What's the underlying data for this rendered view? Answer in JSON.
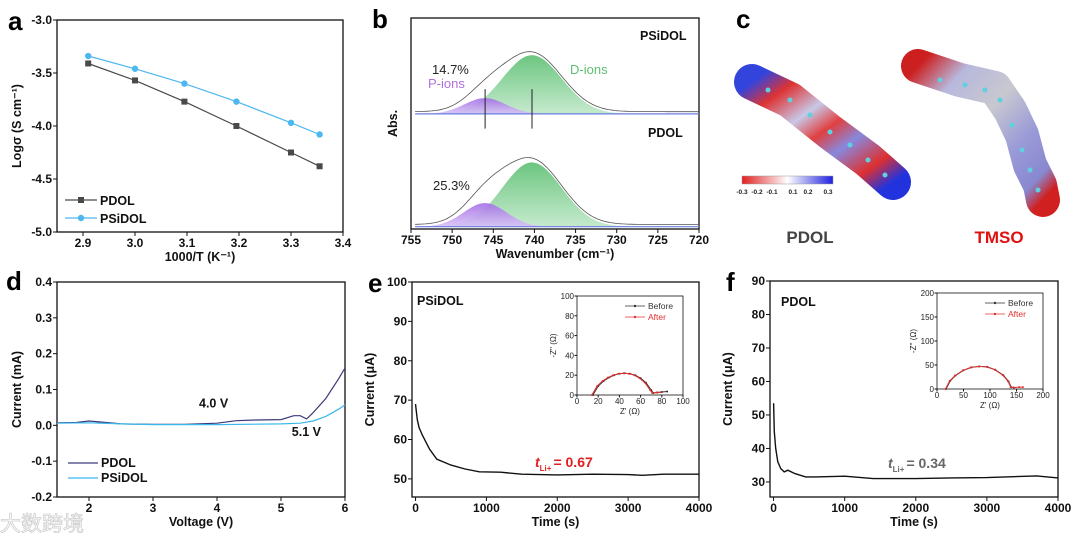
{
  "watermark": "大数跨境",
  "chart_data": [
    {
      "panel": "a",
      "type": "line",
      "xlabel": "1000/T (K⁻¹)",
      "ylabel": "Logσ (S cm⁻¹)",
      "xlim": [
        2.85,
        3.4
      ],
      "ylim": [
        -5.0,
        -3.0
      ],
      "xticks": [
        "2.9",
        "3.0",
        "3.1",
        "3.2",
        "3.3",
        "3.4"
      ],
      "yticks": [
        "-5.0",
        "-4.5",
        "-4.0",
        "-3.5",
        "-3.0"
      ],
      "legend_position": "bottom-left",
      "series": [
        {
          "name": "PDOL",
          "color": "#4a4a4a",
          "marker": "square",
          "points": [
            [
              2.91,
              -3.41
            ],
            [
              3.0,
              -3.57
            ],
            [
              3.095,
              -3.77
            ],
            [
              3.195,
              -4.0
            ],
            [
              3.3,
              -4.25
            ],
            [
              3.355,
              -4.38
            ]
          ]
        },
        {
          "name": "PSiDOL",
          "color": "#4db8f0",
          "marker": "circle",
          "points": [
            [
              2.91,
              -3.34
            ],
            [
              3.0,
              -3.46
            ],
            [
              3.095,
              -3.6
            ],
            [
              3.195,
              -3.77
            ],
            [
              3.3,
              -3.97
            ],
            [
              3.355,
              -4.08
            ]
          ]
        }
      ]
    },
    {
      "panel": "b",
      "type": "area",
      "xlabel": "Wavenumber (cm⁻¹)",
      "ylabel": "Abs.",
      "xlim": [
        755,
        720
      ],
      "xticks": [
        "755",
        "750",
        "745",
        "740",
        "735",
        "730",
        "725",
        "720"
      ],
      "series": [
        {
          "name": "PSiDOL",
          "color": "#8878e8",
          "offset": 1.0,
          "components": [
            {
              "name": "P-ions",
              "center": 746,
              "sigma": 2.5,
              "amplitude": 0.14,
              "color": "#b07ee8"
            },
            {
              "name": "D-ions",
              "center": 740.3,
              "sigma": 3.6,
              "amplitude": 0.52,
              "color": "#66c47a"
            }
          ],
          "p_ion_fraction": "14.7%"
        },
        {
          "name": "PDOL",
          "color": "#333333",
          "offset": 0.0,
          "components": [
            {
              "name": "P-ions",
              "center": 746,
              "sigma": 2.6,
              "amplitude": 0.21,
              "color": "#b07ee8"
            },
            {
              "name": "D-ions",
              "center": 740.3,
              "sigma": 3.6,
              "amplitude": 0.57,
              "color": "#66c47a"
            }
          ],
          "p_ion_fraction": "25.3%"
        }
      ],
      "annotations": {
        "p_ions": "P-ions",
        "d_ions": "D-ions"
      },
      "marker_lines": [
        746,
        740.3
      ]
    },
    {
      "panel": "c",
      "type": "other",
      "molecules": [
        {
          "name": "PDOL",
          "color": "#444444"
        },
        {
          "name": "TMSO",
          "color": "#e01010"
        }
      ],
      "colorbar_ticks": [
        "-0.3",
        "-0.2",
        "-0.1",
        "0.1",
        "0.2",
        "0.3"
      ],
      "colorbar_colors": [
        "#e02020",
        "#ffffff",
        "#2020e0"
      ]
    },
    {
      "panel": "d",
      "type": "line",
      "xlabel": "Voltage (V)",
      "ylabel": "Current (mA)",
      "xlim": [
        1.5,
        6
      ],
      "ylim": [
        -0.2,
        0.4
      ],
      "xticks": [
        "2",
        "3",
        "4",
        "5",
        "6"
      ],
      "yticks": [
        "-0.2",
        "-0.1",
        "0.0",
        "0.1",
        "0.2",
        "0.3",
        "0.4"
      ],
      "legend_position": "bottom-left",
      "series": [
        {
          "name": "PDOL",
          "color": "#3a3a7a",
          "points": [
            [
              1.5,
              0.007
            ],
            [
              1.8,
              0.008
            ],
            [
              2.0,
              0.012
            ],
            [
              2.2,
              0.009
            ],
            [
              2.5,
              0.004
            ],
            [
              3,
              0.003
            ],
            [
              3.5,
              0.003
            ],
            [
              4,
              0.006
            ],
            [
              4.3,
              0.013
            ],
            [
              4.6,
              0.015
            ],
            [
              5,
              0.016
            ],
            [
              5.2,
              0.027
            ],
            [
              5.3,
              0.027
            ],
            [
              5.4,
              0.018
            ],
            [
              5.5,
              0.035
            ],
            [
              5.7,
              0.075
            ],
            [
              5.9,
              0.13
            ],
            [
              6,
              0.16
            ]
          ]
        },
        {
          "name": "PSiDOL",
          "color": "#3ab8ec",
          "points": [
            [
              1.5,
              0.006
            ],
            [
              2,
              0.007
            ],
            [
              2.5,
              0.004
            ],
            [
              3,
              0.002
            ],
            [
              4,
              0.002
            ],
            [
              5,
              0.004
            ],
            [
              5.3,
              0.006
            ],
            [
              5.5,
              0.012
            ],
            [
              5.7,
              0.025
            ],
            [
              5.9,
              0.045
            ],
            [
              6,
              0.057
            ]
          ]
        }
      ],
      "annotations": [
        {
          "text": "4.0 V",
          "color": "#3a3a7a",
          "at": [
            4.0,
            0.05
          ]
        },
        {
          "text": "5.1 V",
          "color": "#3ab8ec",
          "at": [
            5.45,
            -0.03
          ]
        }
      ]
    },
    {
      "panel": "e",
      "type": "line",
      "xlabel": "Time (s)",
      "ylabel": "Current (μA)",
      "xlim": [
        -50,
        4000
      ],
      "ylim": [
        45.4,
        100
      ],
      "xticks": [
        "0",
        "1000",
        "2000",
        "3000",
        "4000"
      ],
      "yticks": [
        "50",
        "60",
        "70",
        "80",
        "90",
        "100"
      ],
      "sample": {
        "text": "PSiDOL",
        "color": "#8878e8"
      },
      "transference": {
        "symbol": "t",
        "subscript": "Li+",
        "value": "= 0.67",
        "color": "#e02020"
      },
      "series": [
        {
          "name": "current",
          "color": "#111111",
          "points": [
            [
              0,
              69
            ],
            [
              25,
              65
            ],
            [
              50,
              63
            ],
            [
              100,
              61
            ],
            [
              200,
              57.5
            ],
            [
              300,
              55
            ],
            [
              500,
              53.5
            ],
            [
              700,
              52.5
            ],
            [
              900,
              51.8
            ],
            [
              1200,
              51.7
            ],
            [
              1500,
              51.2
            ],
            [
              2000,
              51
            ],
            [
              2500,
              51.2
            ],
            [
              3000,
              51.1
            ],
            [
              3200,
              50.9
            ],
            [
              3500,
              51.2
            ],
            [
              4000,
              51.2
            ]
          ]
        }
      ],
      "inset": {
        "type": "scatter",
        "xlabel": "Z' (Ω)",
        "ylabel": "-Z'' (Ω)",
        "xlim": [
          0,
          100
        ],
        "ylim": [
          0,
          100
        ],
        "xticks": [
          "0",
          "20",
          "40",
          "60",
          "80",
          "100"
        ],
        "yticks": [
          "0",
          "20",
          "40",
          "60",
          "80",
          "100"
        ],
        "series": [
          {
            "name": "Before",
            "color": "#333333",
            "points": [
              [
                15,
                0
              ],
              [
                20,
                9
              ],
              [
                25,
                14
              ],
              [
                30,
                17.5
              ],
              [
                35,
                20
              ],
              [
                40,
                21.5
              ],
              [
                45,
                22
              ],
              [
                50,
                21.5
              ],
              [
                55,
                20
              ],
              [
                60,
                17
              ],
              [
                65,
                12.5
              ],
              [
                70,
                5
              ],
              [
                72,
                2
              ],
              [
                76,
                2.5
              ],
              [
                80,
                3
              ],
              [
                85,
                3.5
              ]
            ]
          },
          {
            "name": "After",
            "color": "#e03030",
            "points": [
              [
                14,
                0
              ],
              [
                19,
                9
              ],
              [
                24,
                14
              ],
              [
                29,
                17.5
              ],
              [
                34,
                20
              ],
              [
                39,
                21.5
              ],
              [
                44,
                22
              ],
              [
                49,
                21.5
              ],
              [
                54,
                20
              ],
              [
                59,
                17
              ],
              [
                64,
                12.5
              ],
              [
                69,
                5
              ],
              [
                71,
                2
              ],
              [
                75,
                2.5
              ],
              [
                79,
                2.8
              ]
            ]
          }
        ]
      }
    },
    {
      "panel": "f",
      "type": "line",
      "xlabel": "Time (s)",
      "ylabel": "Current (μA)",
      "xlim": [
        -50,
        4000
      ],
      "ylim": [
        25.5,
        90
      ],
      "xticks": [
        "0",
        "1000",
        "2000",
        "3000",
        "4000"
      ],
      "yticks": [
        "30",
        "40",
        "50",
        "60",
        "70",
        "80",
        "90"
      ],
      "sample": {
        "text": "PDOL",
        "color": "#555555"
      },
      "transference": {
        "symbol": "t",
        "subscript": "Li+",
        "value": "= 0.34",
        "color": "#666666"
      },
      "series": [
        {
          "name": "current",
          "color": "#111111",
          "points": [
            [
              0,
              53.5
            ],
            [
              10,
              45
            ],
            [
              30,
              40
            ],
            [
              60,
              36
            ],
            [
              100,
              34
            ],
            [
              150,
              33
            ],
            [
              200,
              33.5
            ],
            [
              300,
              32.5
            ],
            [
              450,
              31.5
            ],
            [
              600,
              31.5
            ],
            [
              1000,
              31.7
            ],
            [
              1400,
              31
            ],
            [
              2000,
              31
            ],
            [
              2500,
              31.2
            ],
            [
              3000,
              31.3
            ],
            [
              3700,
              31.8
            ],
            [
              4000,
              31.2
            ]
          ]
        }
      ],
      "inset": {
        "type": "scatter",
        "xlabel": "Z' (Ω)",
        "ylabel": "-Z'' (Ω)",
        "xlim": [
          0,
          200
        ],
        "ylim": [
          0,
          200
        ],
        "xticks": [
          "0",
          "50",
          "100",
          "150",
          "200"
        ],
        "yticks": [
          "0",
          "50",
          "100",
          "150",
          "200"
        ],
        "series": [
          {
            "name": "Before",
            "color": "#333333",
            "points": [
              [
                17,
                0
              ],
              [
                25,
                17
              ],
              [
                35,
                28
              ],
              [
                50,
                39
              ],
              [
                65,
                45
              ],
              [
                80,
                47
              ],
              [
                95,
                46
              ],
              [
                110,
                40
              ],
              [
                125,
                29
              ],
              [
                135,
                16
              ],
              [
                140,
                4
              ],
              [
                145,
                3
              ]
            ]
          },
          {
            "name": "After",
            "color": "#e03030",
            "points": [
              [
                16,
                0
              ],
              [
                24,
                17
              ],
              [
                34,
                28
              ],
              [
                49,
                39
              ],
              [
                64,
                45
              ],
              [
                79,
                47
              ],
              [
                94,
                46
              ],
              [
                109,
                40
              ],
              [
                124,
                29
              ],
              [
                134,
                16
              ],
              [
                139,
                4
              ],
              [
                145,
                3
              ],
              [
                155,
                4
              ],
              [
                162,
                4
              ]
            ]
          }
        ]
      }
    }
  ]
}
